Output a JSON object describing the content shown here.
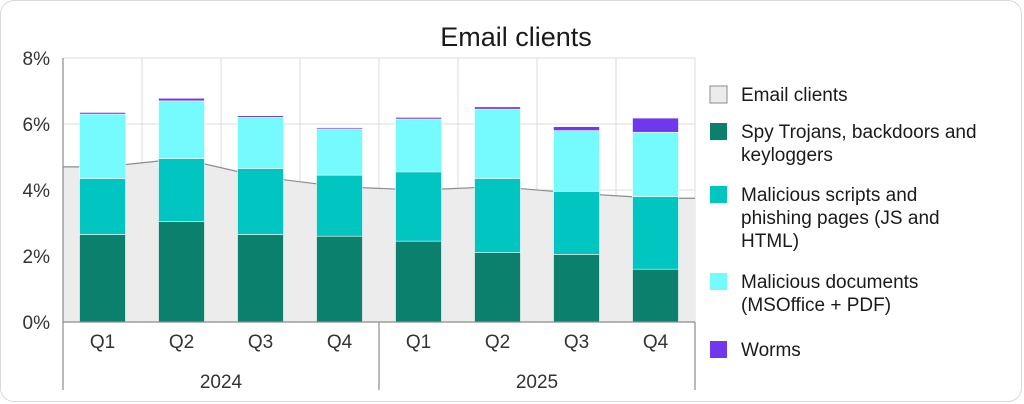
{
  "chart_data": {
    "type": "bar",
    "stacked": true,
    "title": "Email clients",
    "xlabel": "",
    "ylabel": "",
    "ylim": [
      0,
      8
    ],
    "ytick_labels": [
      "0%",
      "2%",
      "4%",
      "6%",
      "8%"
    ],
    "ytick_values": [
      0,
      2,
      4,
      6,
      8
    ],
    "grid": true,
    "legend_position": "right",
    "categories": [
      "Q1",
      "Q2",
      "Q3",
      "Q4",
      "Q1",
      "Q2",
      "Q3",
      "Q4"
    ],
    "groups": [
      {
        "label": "2024",
        "categories": [
          "Q1",
          "Q2",
          "Q3",
          "Q4"
        ]
      },
      {
        "label": "2025",
        "categories": [
          "Q1",
          "Q2",
          "Q3",
          "Q4"
        ]
      }
    ],
    "area": {
      "name": "Email clients",
      "color": "#ececec",
      "values": [
        4.7,
        4.95,
        4.4,
        4.1,
        4.0,
        4.1,
        3.9,
        3.75
      ]
    },
    "series": [
      {
        "name": "Spy Trojans, backdoors and keyloggers",
        "color": "#0b806d",
        "values": [
          2.65,
          3.05,
          2.65,
          2.6,
          2.45,
          2.1,
          2.05,
          1.6
        ]
      },
      {
        "name": "Malicious scripts and phishing pages (JS and HTML)",
        "color": "#00c5c0",
        "values": [
          1.7,
          1.9,
          2.0,
          1.85,
          2.1,
          2.25,
          1.9,
          2.2
        ]
      },
      {
        "name": "Malicious documents (MSOffice + PDF)",
        "color": "#75fbfd",
        "values": [
          1.95,
          1.75,
          1.55,
          1.4,
          1.6,
          2.1,
          1.85,
          1.95
        ]
      },
      {
        "name": "Worms",
        "color": "#7037ee",
        "values": [
          0.05,
          0.08,
          0.05,
          0.04,
          0.05,
          0.07,
          0.12,
          0.43
        ]
      }
    ],
    "legend": [
      {
        "lines": [
          "Email clients"
        ],
        "color": "#ececec",
        "series": "Email clients"
      },
      {
        "lines": [
          "Spy Trojans, backdoors and",
          "keyloggers"
        ],
        "color": "#0b806d",
        "series": "Spy Trojans, backdoors and keyloggers"
      },
      {
        "lines": [
          "Malicious scripts and",
          "phishing pages (JS and",
          "HTML)"
        ],
        "color": "#00c5c0",
        "series": "Malicious scripts and phishing pages (JS and HTML)"
      },
      {
        "lines": [
          "Malicious documents",
          "(MSOffice + PDF)"
        ],
        "color": "#75fbfd",
        "series": "Malicious documents (MSOffice + PDF)"
      },
      {
        "lines": [
          "Worms"
        ],
        "color": "#7037ee",
        "series": "Worms"
      }
    ]
  }
}
